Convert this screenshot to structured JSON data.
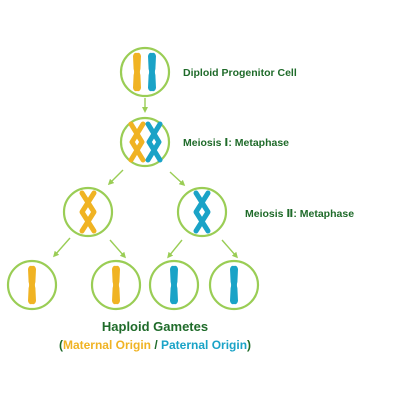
{
  "labels": {
    "progenitor": "Diploid Progenitor Cell",
    "meiosis1": "Meiosis Ⅰ: Metaphase",
    "meiosis2": "Meiosis Ⅱ: Metaphase"
  },
  "caption": {
    "title": "Haploid Gametes",
    "open_paren": "(",
    "maternal": "Maternal Origin",
    "separator": " / ",
    "paternal": "Paternal Origin",
    "close_paren": ")"
  },
  "colors": {
    "cell_outline": "#9acd55",
    "arrow": "#9acd55",
    "label_text": "#1f6b2a",
    "maternal": "#f0b323",
    "paternal": "#1aa3c7"
  },
  "icons": {
    "chromosome": "chromosome-icon",
    "bivalent": "crossed-chromosome-icon"
  }
}
